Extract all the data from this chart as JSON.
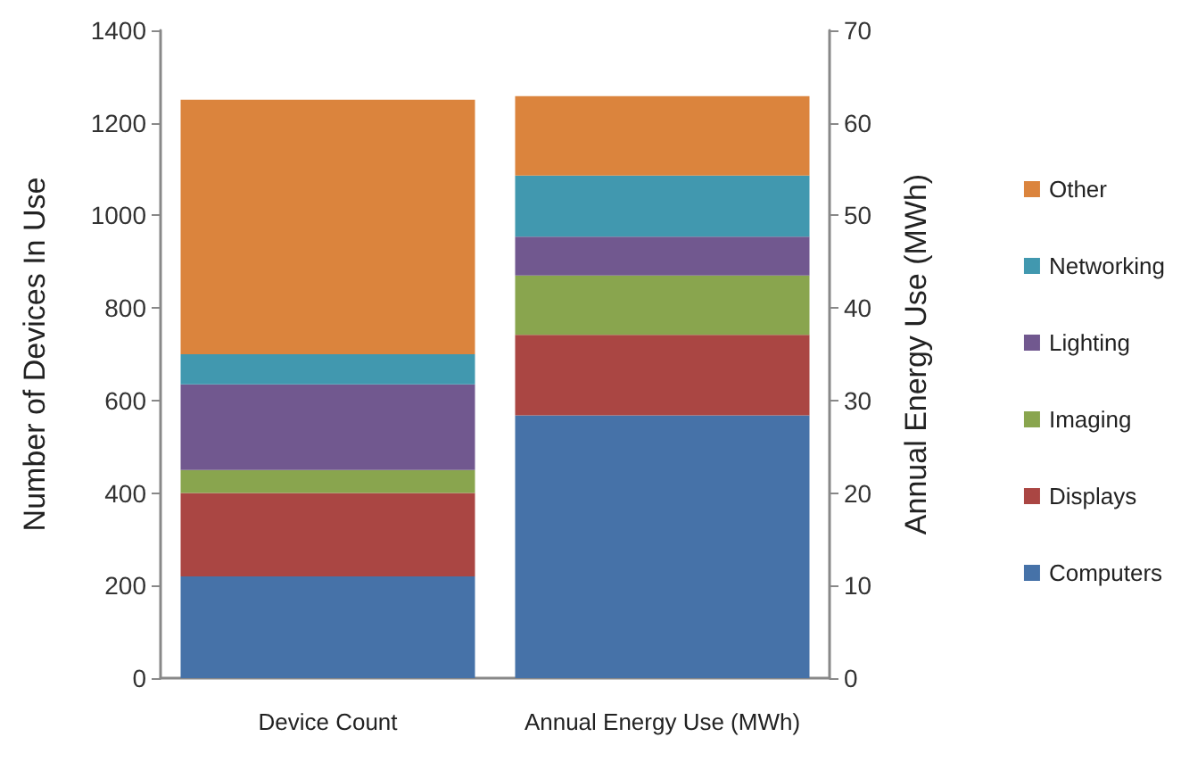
{
  "chart_data": {
    "type": "bar",
    "stacked": true,
    "categories": [
      "Device Count",
      "Annual Energy Use (MWh)"
    ],
    "ylabel": "Number of Devices In Use",
    "y2label": "Annual Energy Use (MWh)",
    "ylim": [
      0,
      1400
    ],
    "yticks": [
      0,
      200,
      400,
      600,
      800,
      1000,
      1200,
      1400
    ],
    "y2lim": [
      0,
      70
    ],
    "y2ticks": [
      0,
      10,
      20,
      30,
      40,
      50,
      60,
      70
    ],
    "legend": "right",
    "grid": false,
    "series": [
      {
        "name": "Computers",
        "color": "#4672a8",
        "values": [
          220,
          null
        ]
      },
      {
        "name": "Displays",
        "color": "#aa4643",
        "values": [
          180,
          null
        ]
      },
      {
        "name": "Imaging",
        "color": "#89a54e",
        "values": [
          50,
          null
        ]
      },
      {
        "name": "Lighting",
        "color": "#71588f",
        "values": [
          185,
          null
        ]
      },
      {
        "name": "Networking",
        "color": "#4198af",
        "values": [
          65,
          null
        ]
      },
      {
        "name": "Other",
        "color": "#db843d",
        "values": [
          550,
          null
        ]
      },
      {
        "axis": "y2",
        "color": "#4672a8",
        "values": [
          null,
          28.4
        ]
      },
      {
        "axis": "y2",
        "color": "#aa4643",
        "values": [
          null,
          8.7
        ]
      },
      {
        "axis": "y2",
        "color": "#89a54e",
        "values": [
          null,
          6.4
        ]
      },
      {
        "axis": "y2",
        "color": "#71588f",
        "values": [
          null,
          4.2
        ]
      },
      {
        "axis": "y2",
        "color": "#4198af",
        "values": [
          null,
          6.6
        ]
      },
      {
        "axis": "y2",
        "color": "#db843d",
        "values": [
          null,
          8.6
        ]
      }
    ]
  }
}
